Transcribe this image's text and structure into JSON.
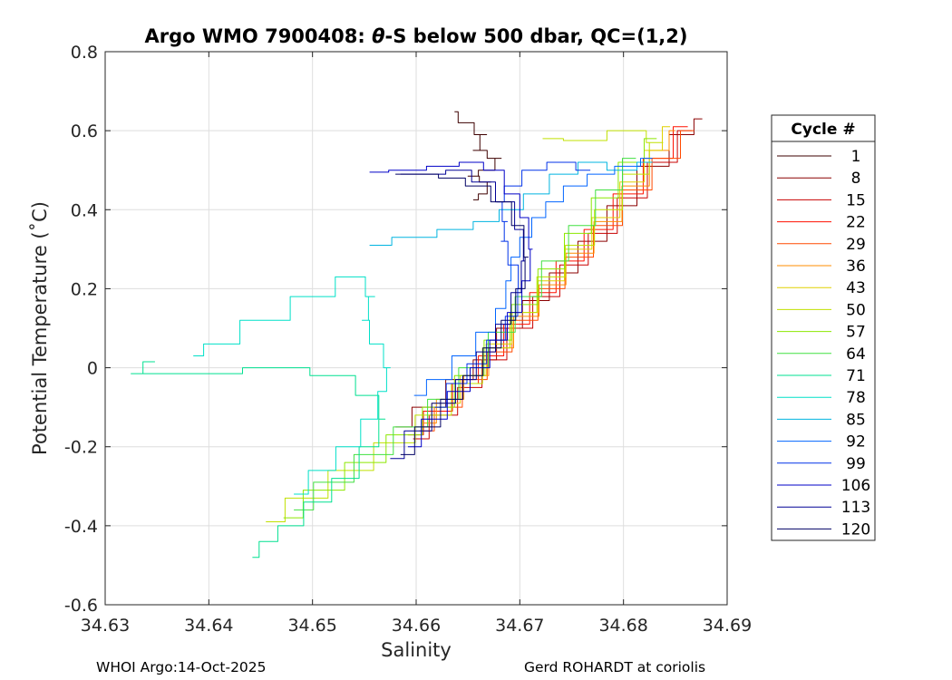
{
  "chart_data": {
    "type": "line",
    "title_pre": "Argo WMO 7900408: ",
    "title_theta": "θ",
    "title_post": "-S below 500 dbar,  QC=(1,2)",
    "xlabel": "Salinity",
    "ylabel": "Potential Temperature (˚C)",
    "xlim": [
      34.63,
      34.69
    ],
    "ylim": [
      -0.6,
      0.8
    ],
    "xticks": [
      34.63,
      34.64,
      34.65,
      34.66,
      34.67,
      34.68,
      34.69
    ],
    "xtick_labels": [
      "34.63",
      "34.64",
      "34.65",
      "34.66",
      "34.67",
      "34.68",
      "34.69"
    ],
    "yticks": [
      -0.6,
      -0.4,
      -0.2,
      0,
      0.2,
      0.4,
      0.6,
      0.8
    ],
    "ytick_labels": [
      "-0.6",
      "-0.4",
      "-0.2",
      "0",
      "0.2",
      "0.4",
      "0.6",
      "0.8"
    ],
    "grid": true,
    "legend_title": "Cycle #",
    "legend_position": "right, outside plot",
    "series": [
      {
        "name": "1",
        "color": "#3d0000",
        "points": [
          [
            34.6637,
            0.648
          ],
          [
            34.6644,
            0.62
          ],
          [
            34.6668,
            0.59
          ],
          [
            34.6655,
            0.55
          ],
          [
            34.6682,
            0.53
          ],
          [
            34.667,
            0.5
          ],
          [
            34.665,
            0.485
          ],
          [
            34.6672,
            0.47
          ],
          [
            34.6665,
            0.44
          ],
          [
            34.6655,
            0.425
          ]
        ]
      },
      {
        "name": "8",
        "color": "#8b0000",
        "points": [
          [
            34.658,
            -0.15
          ],
          [
            34.6612,
            -0.1
          ],
          [
            34.6645,
            -0.03
          ],
          [
            34.6665,
            0.02
          ],
          [
            34.669,
            0.1
          ],
          [
            34.6715,
            0.17
          ],
          [
            34.6742,
            0.24
          ],
          [
            34.677,
            0.32
          ],
          [
            34.6798,
            0.41
          ],
          [
            34.6828,
            0.51
          ],
          [
            34.686,
            0.59
          ],
          [
            34.6876,
            0.63
          ]
        ]
      },
      {
        "name": "15",
        "color": "#c80000",
        "points": [
          [
            34.6597,
            -0.18
          ],
          [
            34.6628,
            -0.12
          ],
          [
            34.6652,
            -0.05
          ],
          [
            34.6675,
            0.02
          ],
          [
            34.67,
            0.1
          ],
          [
            34.6725,
            0.18
          ],
          [
            34.6752,
            0.26
          ],
          [
            34.678,
            0.34
          ],
          [
            34.6808,
            0.43
          ],
          [
            34.6838,
            0.52
          ],
          [
            34.6866,
            0.6
          ]
        ]
      },
      {
        "name": "22",
        "color": "#ff1000",
        "points": [
          [
            34.6592,
            -0.17
          ],
          [
            34.6622,
            -0.11
          ],
          [
            34.6648,
            -0.04
          ],
          [
            34.6672,
            0.03
          ],
          [
            34.6697,
            0.11
          ],
          [
            34.6722,
            0.19
          ],
          [
            34.6748,
            0.27
          ],
          [
            34.6776,
            0.35
          ],
          [
            34.6804,
            0.44
          ],
          [
            34.6834,
            0.53
          ],
          [
            34.6862,
            0.61
          ]
        ]
      },
      {
        "name": "29",
        "color": "#ff4a00",
        "points": [
          [
            34.6603,
            -0.16
          ],
          [
            34.6632,
            -0.1
          ],
          [
            34.6657,
            -0.03
          ],
          [
            34.668,
            0.04
          ],
          [
            34.6705,
            0.12
          ],
          [
            34.673,
            0.2
          ],
          [
            34.6757,
            0.28
          ],
          [
            34.6785,
            0.36
          ],
          [
            34.6813,
            0.45
          ],
          [
            34.6842,
            0.53
          ],
          [
            34.6868,
            0.6
          ]
        ]
      },
      {
        "name": "36",
        "color": "#ff8c00",
        "points": [
          [
            34.6605,
            -0.14
          ],
          [
            34.6634,
            -0.08
          ],
          [
            34.6658,
            -0.02
          ],
          [
            34.6682,
            0.05
          ],
          [
            34.6706,
            0.13
          ],
          [
            34.6731,
            0.21
          ],
          [
            34.6758,
            0.29
          ],
          [
            34.6785,
            0.37
          ],
          [
            34.6812,
            0.46
          ],
          [
            34.6838,
            0.55
          ],
          [
            34.685,
            0.6
          ]
        ]
      },
      {
        "name": "43",
        "color": "#e0d000",
        "points": [
          [
            34.66,
            -0.15
          ],
          [
            34.663,
            -0.09
          ],
          [
            34.6655,
            -0.02
          ],
          [
            34.668,
            0.06
          ],
          [
            34.6705,
            0.14
          ],
          [
            34.673,
            0.22
          ],
          [
            34.6756,
            0.3
          ],
          [
            34.6783,
            0.38
          ],
          [
            34.681,
            0.47
          ],
          [
            34.683,
            0.55
          ],
          [
            34.6845,
            0.61
          ]
        ]
      },
      {
        "name": "50",
        "color": "#c0e000",
        "points": [
          [
            34.6455,
            -0.39
          ],
          [
            34.6492,
            -0.33
          ],
          [
            34.6538,
            -0.26
          ],
          [
            34.658,
            -0.19
          ],
          [
            34.6618,
            -0.12
          ],
          [
            34.665,
            -0.04
          ],
          [
            34.6678,
            0.05
          ],
          [
            34.6703,
            0.14
          ],
          [
            34.673,
            0.23
          ],
          [
            34.6758,
            0.31
          ],
          [
            34.6786,
            0.4
          ],
          [
            34.6812,
            0.49
          ],
          [
            34.6838,
            0.57
          ],
          [
            34.6806,
            0.6
          ],
          [
            34.6762,
            0.575
          ],
          [
            34.6722,
            0.58
          ]
        ]
      },
      {
        "name": "57",
        "color": "#8ce800",
        "points": [
          [
            34.6472,
            -0.38
          ],
          [
            34.651,
            -0.31
          ],
          [
            34.6552,
            -0.24
          ],
          [
            34.659,
            -0.17
          ],
          [
            34.6622,
            -0.1
          ],
          [
            34.6652,
            -0.02
          ],
          [
            34.6679,
            0.07
          ],
          [
            34.6705,
            0.16
          ],
          [
            34.673,
            0.25
          ],
          [
            34.6756,
            0.34
          ],
          [
            34.6782,
            0.43
          ],
          [
            34.6808,
            0.52
          ],
          [
            34.6832,
            0.58
          ]
        ]
      },
      {
        "name": "64",
        "color": "#40e040",
        "points": [
          [
            34.6482,
            -0.36
          ],
          [
            34.652,
            -0.29
          ],
          [
            34.656,
            -0.22
          ],
          [
            34.6596,
            -0.15
          ],
          [
            34.6626,
            -0.08
          ],
          [
            34.6656,
            0.0
          ],
          [
            34.6683,
            0.09
          ],
          [
            34.6708,
            0.18
          ],
          [
            34.6734,
            0.27
          ],
          [
            34.676,
            0.36
          ],
          [
            34.6786,
            0.45
          ],
          [
            34.6812,
            0.53
          ]
        ]
      },
      {
        "name": "71",
        "color": "#00e090",
        "points": [
          [
            34.6442,
            -0.48
          ],
          [
            34.6455,
            -0.44
          ],
          [
            34.6478,
            -0.4
          ],
          [
            34.6505,
            -0.34
          ],
          [
            34.6532,
            -0.28
          ],
          [
            34.6558,
            -0.2
          ],
          [
            34.657,
            -0.13
          ],
          [
            34.6558,
            -0.07
          ],
          [
            34.6525,
            -0.02
          ],
          [
            34.647,
            0.0
          ],
          [
            34.6395,
            -0.015
          ],
          [
            34.6325,
            -0.015
          ],
          [
            34.6348,
            0.015
          ]
        ]
      },
      {
        "name": "78",
        "color": "#00e0c8",
        "points": [
          [
            34.6482,
            -0.32
          ],
          [
            34.651,
            -0.26
          ],
          [
            34.6535,
            -0.2
          ],
          [
            34.6558,
            -0.13
          ],
          [
            34.6568,
            -0.06
          ],
          [
            34.6575,
            0.0
          ],
          [
            34.6562,
            0.06
          ],
          [
            34.6548,
            0.12
          ],
          [
            34.656,
            0.18
          ],
          [
            34.6542,
            0.23
          ],
          [
            34.6502,
            0.18
          ],
          [
            34.6455,
            0.12
          ],
          [
            34.6405,
            0.06
          ],
          [
            34.6385,
            0.03
          ]
        ]
      },
      {
        "name": "85",
        "color": "#00b4e0",
        "points": [
          [
            34.6555,
            0.31
          ],
          [
            34.6598,
            0.33
          ],
          [
            34.6642,
            0.35
          ],
          [
            34.6668,
            0.37
          ],
          [
            34.6692,
            0.4
          ],
          [
            34.6715,
            0.44
          ],
          [
            34.6742,
            0.49
          ],
          [
            34.677,
            0.52
          ],
          [
            34.6798,
            0.5
          ],
          [
            34.6828,
            0.52
          ]
        ]
      },
      {
        "name": "92",
        "color": "#0064ff",
        "points": [
          [
            34.6598,
            -0.07
          ],
          [
            34.6622,
            -0.03
          ],
          [
            34.6647,
            0.03
          ],
          [
            34.6668,
            0.09
          ],
          [
            34.6685,
            0.15
          ],
          [
            34.6688,
            0.22
          ],
          [
            34.6695,
            0.28
          ],
          [
            34.6705,
            0.33
          ],
          [
            34.6718,
            0.38
          ],
          [
            34.6732,
            0.42
          ],
          [
            34.6752,
            0.46
          ],
          [
            34.6778,
            0.49
          ],
          [
            34.6805,
            0.51
          ],
          [
            34.6828,
            0.53
          ]
        ]
      },
      {
        "name": "99",
        "color": "#0032e8",
        "points": [
          [
            34.6618,
            -0.1
          ],
          [
            34.664,
            -0.04
          ],
          [
            34.6658,
            0.01
          ],
          [
            34.6678,
            0.07
          ],
          [
            34.6694,
            0.13
          ],
          [
            34.6702,
            0.2
          ],
          [
            34.6695,
            0.26
          ],
          [
            34.6682,
            0.32
          ],
          [
            34.6688,
            0.37
          ],
          [
            34.6678,
            0.42
          ],
          [
            34.6692,
            0.46
          ],
          [
            34.6712,
            0.5
          ],
          [
            34.674,
            0.52
          ],
          [
            34.6768,
            0.5
          ]
        ]
      },
      {
        "name": "106",
        "color": "#0000c8",
        "points": [
          [
            34.6592,
            -0.2
          ],
          [
            34.6618,
            -0.13
          ],
          [
            34.6642,
            -0.06
          ],
          [
            34.6662,
            0.0
          ],
          [
            34.668,
            0.07
          ],
          [
            34.6696,
            0.14
          ],
          [
            34.6708,
            0.22
          ],
          [
            34.6712,
            0.3
          ],
          [
            34.6705,
            0.38
          ],
          [
            34.6695,
            0.44
          ],
          [
            34.6675,
            0.5
          ],
          [
            34.6655,
            0.52
          ],
          [
            34.6628,
            0.51
          ],
          [
            34.6592,
            0.5
          ],
          [
            34.6555,
            0.495
          ]
        ]
      },
      {
        "name": "113",
        "color": "#000096",
        "points": [
          [
            34.6575,
            -0.23
          ],
          [
            34.6602,
            -0.16
          ],
          [
            34.6628,
            -0.09
          ],
          [
            34.6648,
            -0.03
          ],
          [
            34.6668,
            0.04
          ],
          [
            34.6685,
            0.11
          ],
          [
            34.6698,
            0.19
          ],
          [
            34.6705,
            0.27
          ],
          [
            34.6702,
            0.35
          ],
          [
            34.6688,
            0.42
          ],
          [
            34.6665,
            0.47
          ],
          [
            34.6642,
            0.5
          ],
          [
            34.6615,
            0.49
          ],
          [
            34.6585,
            0.49
          ]
        ]
      },
      {
        "name": "120",
        "color": "#000064",
        "points": [
          [
            34.6585,
            -0.22
          ],
          [
            34.6612,
            -0.15
          ],
          [
            34.6635,
            -0.08
          ],
          [
            34.6655,
            -0.02
          ],
          [
            34.6674,
            0.05
          ],
          [
            34.669,
            0.12
          ],
          [
            34.6702,
            0.2
          ],
          [
            34.6708,
            0.28
          ],
          [
            34.67,
            0.36
          ],
          [
            34.6684,
            0.42
          ],
          [
            34.666,
            0.46
          ],
          [
            34.6635,
            0.48
          ],
          [
            34.6608,
            0.49
          ],
          [
            34.658,
            0.49
          ]
        ]
      }
    ]
  },
  "footer": {
    "left": "WHOI Argo:14-Oct-2025",
    "right": "Gerd ROHARDT at coriolis"
  }
}
